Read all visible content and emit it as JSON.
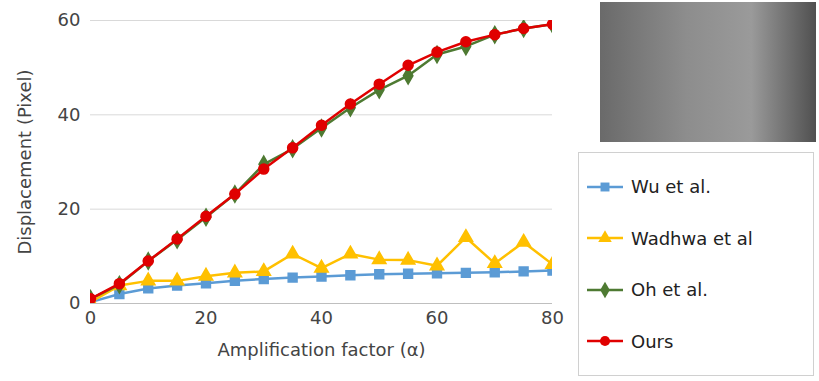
{
  "chart_data": {
    "type": "line",
    "xlabel": "Amplification factor (α)",
    "ylabel": "Displacement (Pixel)",
    "x": [
      0,
      5,
      10,
      15,
      20,
      25,
      30,
      35,
      40,
      45,
      50,
      55,
      60,
      65,
      70,
      75,
      80
    ],
    "xlim": [
      0,
      80
    ],
    "xticks": [
      0,
      20,
      40,
      60,
      80
    ],
    "ylim": [
      0,
      60
    ],
    "yticks": [
      0,
      20,
      40,
      60
    ],
    "grid": true,
    "legend": "right",
    "series": [
      {
        "name": "Wu et al.",
        "color": "#5b9bd5",
        "marker": "square",
        "values": [
          0.3,
          2,
          3.2,
          3.8,
          4.3,
          4.8,
          5.2,
          5.5,
          5.7,
          6,
          6.2,
          6.3,
          6.4,
          6.5,
          6.6,
          6.8,
          7
        ]
      },
      {
        "name": "Wadhwa et al",
        "color": "#ffc000",
        "marker": "triangle",
        "values": [
          0.3,
          3.8,
          4.8,
          4.8,
          5.8,
          6.5,
          6.8,
          10.5,
          7.5,
          10.5,
          9.3,
          9.2,
          8,
          14,
          8.5,
          13,
          8.3
        ]
      },
      {
        "name": "Oh et al.",
        "color": "#4e7a32",
        "marker": "diamond",
        "values": [
          1,
          4,
          9,
          13.5,
          18.3,
          23.2,
          29.5,
          32.8,
          37.2,
          41.5,
          45.3,
          48.3,
          52.8,
          54.5,
          57,
          58.3,
          59.2
        ]
      },
      {
        "name": "Ours",
        "color": "#e00000",
        "marker": "circle",
        "values": [
          1,
          4.2,
          9,
          13.7,
          18.5,
          23.2,
          28.5,
          33,
          37.8,
          42.3,
          46.5,
          50.5,
          53.3,
          55.5,
          57,
          58.3,
          59.2
        ]
      }
    ]
  }
}
